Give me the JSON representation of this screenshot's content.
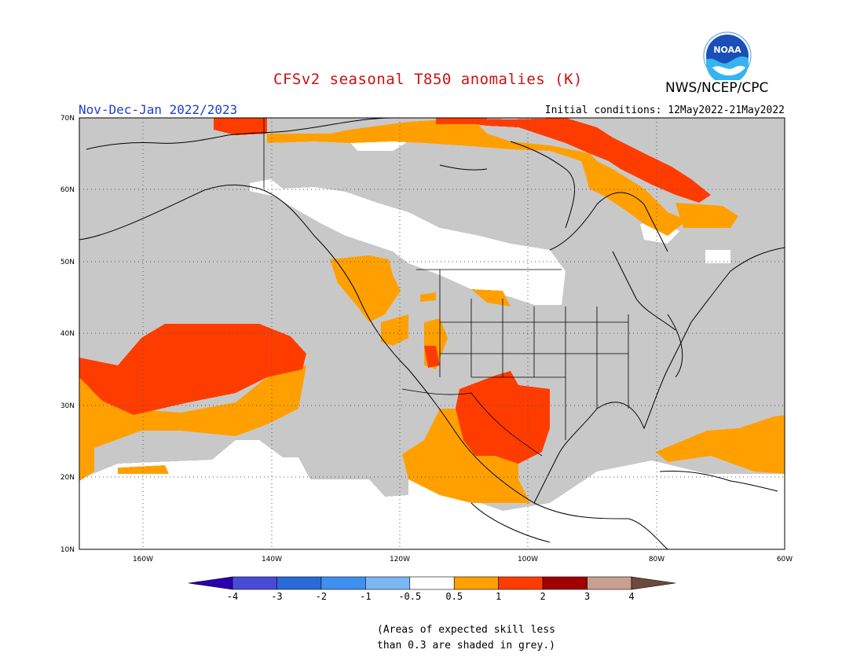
{
  "title": "CFSv2 seasonal T850 anomalies (K)",
  "agency": "NWS/NCEP/CPC",
  "logo_text": "NOAA",
  "season": "Nov-Dec-Jan 2022/2023",
  "initial_conditions": "Initial conditions: 12May2022-21May2022",
  "map": {
    "lon_range": [
      -170,
      -60
    ],
    "lat_range": [
      10,
      70
    ],
    "lat_labels": [
      "70N",
      "60N",
      "50N",
      "40N",
      "30N",
      "20N",
      "10N"
    ],
    "lon_labels": [
      "160W",
      "140W",
      "120W",
      "100W",
      "80W",
      "60W"
    ],
    "grid": "dotted"
  },
  "colorbar": {
    "tick_labels": [
      "-4",
      "-3",
      "-2",
      "-1",
      "-0.5",
      "0.5",
      "1",
      "2",
      "3",
      "4"
    ],
    "colors": [
      "#2a00b0",
      "#4a4ad8",
      "#2a6ad8",
      "#3e8ff0",
      "#7cb6f4",
      "#ffffff",
      "#ff9f00",
      "#ff3c00",
      "#a00000",
      "#c8a090",
      "#6e4a3a"
    ]
  },
  "note_lines": [
    "(Areas of expected skill less",
    "than 0.3 are shaded in grey.)"
  ]
}
